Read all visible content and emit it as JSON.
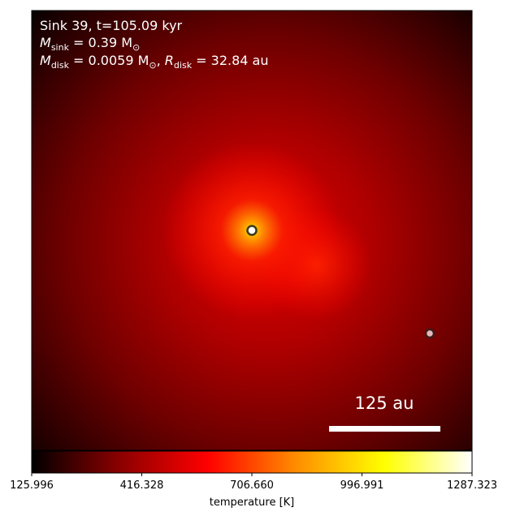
{
  "chart_data": {
    "type": "heatmap",
    "annotations": {
      "line1": "Sink 39, t=105.09 kyr",
      "line2_symbol": "M",
      "line2_sub": "sink",
      "line2_rest": " = 0.39 M",
      "line2_sun": "⊙",
      "line3_symbol1": "M",
      "line3_sub1": "disk",
      "line3_mid": " = 0.0059 M",
      "line3_sun": "⊙",
      "line3_comma": ", ",
      "line3_symbol2": "R",
      "line3_sub2": "disk",
      "line3_rest": " = 32.84 au"
    },
    "scalebar": {
      "label": "125 au"
    },
    "colorbar": {
      "label": "temperature [K]",
      "tick_labels": [
        "125.996",
        "416.328",
        "706.660",
        "996.991",
        "1287.323"
      ],
      "ticks": [
        125.996,
        416.328,
        706.66,
        996.991,
        1287.323
      ],
      "range": [
        125.996,
        1287.323
      ],
      "colormap": "hot",
      "colors": [
        "#000000",
        "#8b0000",
        "#ff0000",
        "#ff8c00",
        "#ffff00",
        "#ffffff"
      ]
    },
    "sinks": [
      {
        "name": "sink-39",
        "role": "central",
        "fill": "#ffffff",
        "edge": "#3a3a1a"
      },
      {
        "name": "sink-companion",
        "role": "companion",
        "fill": "#e8b8b8",
        "edge": "#3a1a1a"
      }
    ]
  }
}
